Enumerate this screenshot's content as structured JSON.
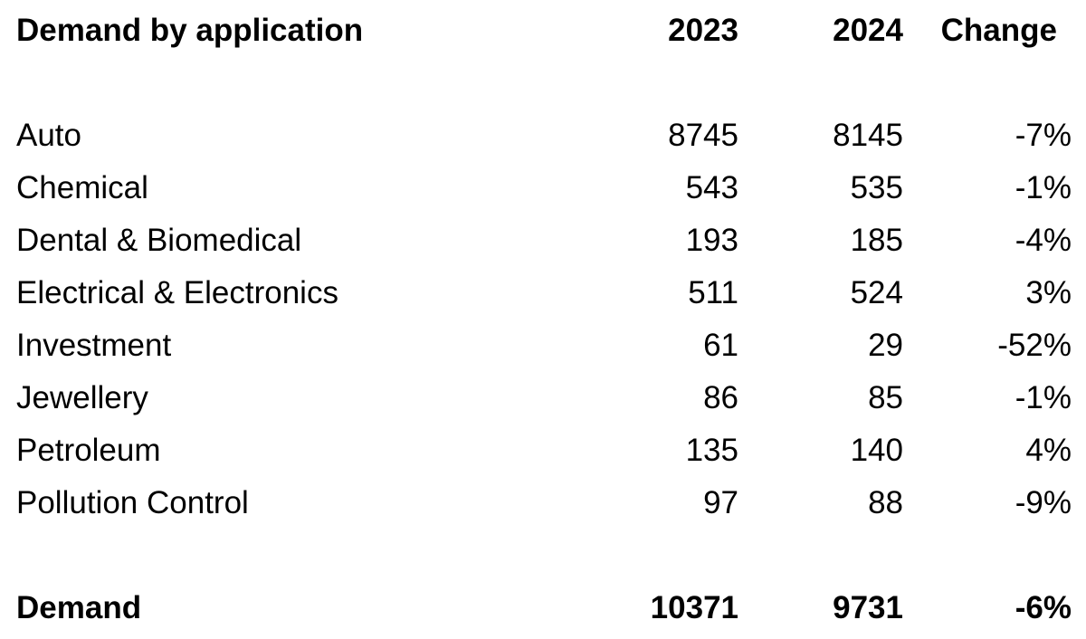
{
  "header": {
    "label": "Demand by application",
    "col_2023": "2023",
    "col_2024": "2024",
    "col_change": "Change"
  },
  "rows": [
    {
      "label": "Auto",
      "v2023": "8745",
      "v2024": "8145",
      "change": "-7%"
    },
    {
      "label": "Chemical",
      "v2023": "543",
      "v2024": "535",
      "change": "-1%"
    },
    {
      "label": "Dental & Biomedical",
      "v2023": "193",
      "v2024": "185",
      "change": "-4%"
    },
    {
      "label": "Electrical & Electronics",
      "v2023": "511",
      "v2024": "524",
      "change": "3%"
    },
    {
      "label": "Investment",
      "v2023": "61",
      "v2024": "29",
      "change": "-52%"
    },
    {
      "label": "Jewellery",
      "v2023": "86",
      "v2024": "85",
      "change": "-1%"
    },
    {
      "label": "Petroleum",
      "v2023": "135",
      "v2024": "140",
      "change": "4%"
    },
    {
      "label": "Pollution Control",
      "v2023": "97",
      "v2024": "88",
      "change": "-9%"
    }
  ],
  "total": {
    "label": "Demand",
    "v2023": "10371",
    "v2024": "9731",
    "change": "-6%"
  }
}
